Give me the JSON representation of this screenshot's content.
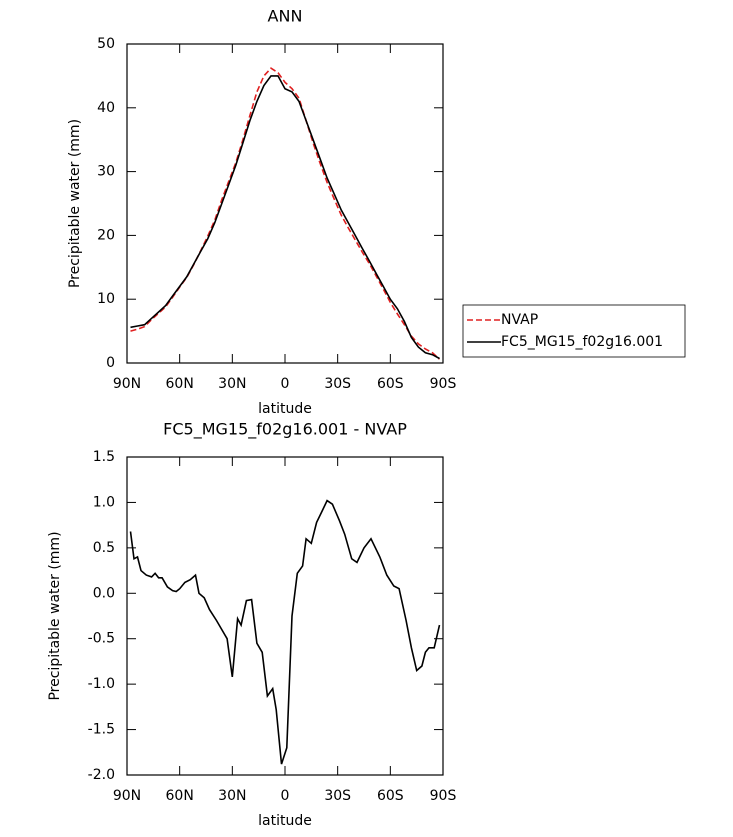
{
  "chart_data": [
    {
      "type": "line",
      "title": "ANN",
      "x_label": "latitude",
      "y_label": "Precipitable water (mm)",
      "x": [
        88,
        84,
        80,
        76,
        72,
        68,
        64,
        60,
        56,
        52,
        48,
        44,
        40,
        36,
        32,
        28,
        24,
        20,
        16,
        12,
        8,
        4,
        0,
        -4,
        -8,
        -12,
        -16,
        -20,
        -24,
        -28,
        -32,
        -36,
        -40,
        -44,
        -48,
        -52,
        -56,
        -60,
        -64,
        -68,
        -72,
        -76,
        -80,
        -84,
        -88
      ],
      "series": [
        {
          "name": "NVAP",
          "color": "#e02020",
          "style": "dashed",
          "values": [
            5.0,
            5.3,
            5.7,
            6.8,
            7.8,
            8.8,
            10.3,
            11.9,
            13.4,
            15.4,
            17.6,
            19.9,
            22.4,
            25.6,
            28.5,
            31.4,
            35,
            38.8,
            42.5,
            45,
            46.2,
            45.5,
            44,
            43,
            41.5,
            38,
            34.5,
            31.3,
            28.3,
            25.7,
            23.2,
            21.2,
            19.3,
            17.4,
            15.6,
            13.6,
            11.6,
            9.5,
            7.7,
            6.0,
            4.2,
            3.0,
            2.2,
            1.6,
            0.6
          ]
        },
        {
          "name": "FC5_MG15_f02g16.001",
          "color": "#000000",
          "style": "solid",
          "values": [
            5.6,
            5.8,
            6.0,
            7.0,
            8.0,
            9.0,
            10.5,
            12,
            13.5,
            15.5,
            17.5,
            19.5,
            22,
            25,
            28,
            31,
            34.5,
            38,
            41,
            43.5,
            45,
            45,
            43,
            42.5,
            41,
            38,
            35,
            32,
            29,
            26.5,
            24,
            22,
            20,
            18,
            16,
            14,
            12,
            10,
            8.5,
            6.5,
            4,
            2.5,
            1.6,
            1.3,
            0.7
          ]
        }
      ],
      "xlim": [
        90,
        -90
      ],
      "xticks": [
        {
          "value": 90,
          "label": "90N"
        },
        {
          "value": 60,
          "label": "60N"
        },
        {
          "value": 30,
          "label": "30N"
        },
        0,
        {
          "value": -30,
          "label": "30S"
        },
        {
          "value": -60,
          "label": "60S"
        },
        {
          "value": -90,
          "label": "90S"
        }
      ],
      "ylim": [
        0,
        50
      ],
      "yticks": [
        0,
        10,
        20,
        30,
        40,
        50
      ],
      "legend": "right"
    },
    {
      "type": "line",
      "title": "FC5_MG15_f02g16.001 - NVAP",
      "x_label": "latitude",
      "y_label": "Precipitable water (mm)",
      "x": [
        88,
        86,
        84,
        82,
        79,
        76,
        74,
        72,
        70,
        67,
        64,
        62,
        60,
        57,
        54,
        51,
        49,
        46,
        43,
        39,
        33,
        30,
        27,
        25,
        22,
        19,
        16,
        13,
        10,
        7,
        5,
        2,
        -1,
        -4,
        -7,
        -10,
        -12,
        -15,
        -18,
        -21,
        -24,
        -27,
        -31,
        -34,
        -38,
        -41,
        -45,
        -49,
        -54,
        -58,
        -62,
        -65,
        -69,
        -72,
        -75,
        -78,
        -80,
        -82,
        -85,
        -88
      ],
      "values": [
        0.68,
        0.38,
        0.4,
        0.25,
        0.2,
        0.18,
        0.22,
        0.17,
        0.17,
        0.07,
        0.03,
        0.02,
        0.05,
        0.12,
        0.15,
        0.2,
        0.0,
        -0.05,
        -0.18,
        -0.3,
        -0.5,
        -0.92,
        -0.28,
        -0.35,
        -0.08,
        -0.07,
        -0.55,
        -0.65,
        -1.13,
        -1.05,
        -1.28,
        -1.88,
        -1.7,
        -0.25,
        0.22,
        0.3,
        0.6,
        0.55,
        0.78,
        0.9,
        1.02,
        0.98,
        0.8,
        0.65,
        0.38,
        0.34,
        0.5,
        0.6,
        0.4,
        0.2,
        0.08,
        0.05,
        -0.3,
        -0.6,
        -0.85,
        -0.8,
        -0.65,
        -0.6,
        -0.6,
        -0.35
      ],
      "color": "#000000",
      "xlim": [
        90,
        -90
      ],
      "xticks": [
        {
          "value": 90,
          "label": "90N"
        },
        {
          "value": 60,
          "label": "60N"
        },
        {
          "value": 30,
          "label": "30N"
        },
        0,
        {
          "value": -30,
          "label": "30S"
        },
        {
          "value": -60,
          "label": "60S"
        },
        {
          "value": -90,
          "label": "90S"
        }
      ],
      "ylim": [
        -2,
        1.5
      ],
      "yticks": [
        {
          "value": -2,
          "label": "-2.0"
        },
        -1.5,
        {
          "value": -1,
          "label": "-1.0"
        },
        -0.5,
        {
          "value": 0,
          "label": "0.0"
        },
        0.5,
        {
          "value": 1,
          "label": "1.0"
        },
        1.5
      ]
    }
  ]
}
